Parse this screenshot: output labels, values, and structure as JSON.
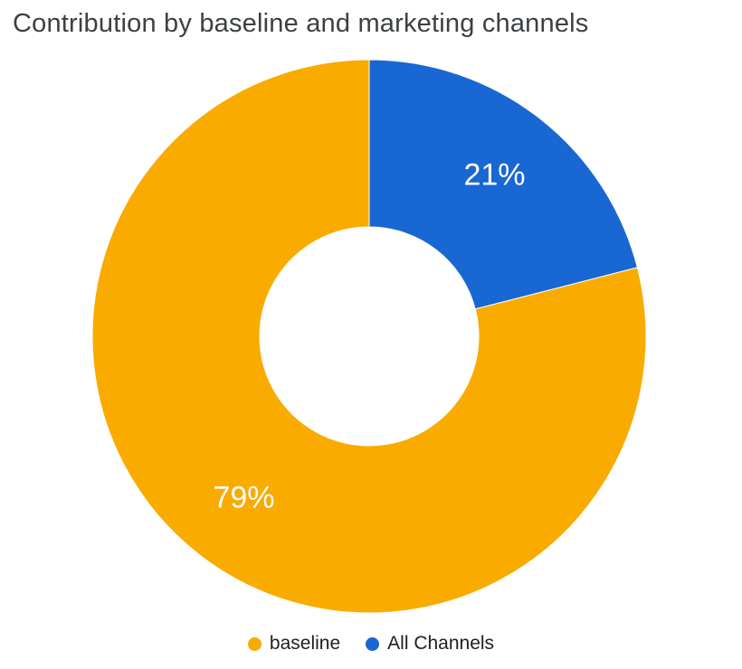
{
  "chart_data": {
    "type": "pie",
    "donut": true,
    "title": "Contribution by baseline and marketing channels",
    "direction": "clockwise",
    "start_angle_deg": 0,
    "inner_radius_ratio": 0.4,
    "slices": [
      {
        "label": "All Channels",
        "value": 21,
        "percent_label": "21%",
        "color": "#1967D2"
      },
      {
        "label": "baseline",
        "value": 79,
        "percent_label": "79%",
        "color": "#F9AB00"
      }
    ],
    "legend": {
      "position": "bottom",
      "items": [
        {
          "label": "baseline",
          "color": "#F9AB00"
        },
        {
          "label": "All Channels",
          "color": "#1967D2"
        }
      ]
    }
  }
}
